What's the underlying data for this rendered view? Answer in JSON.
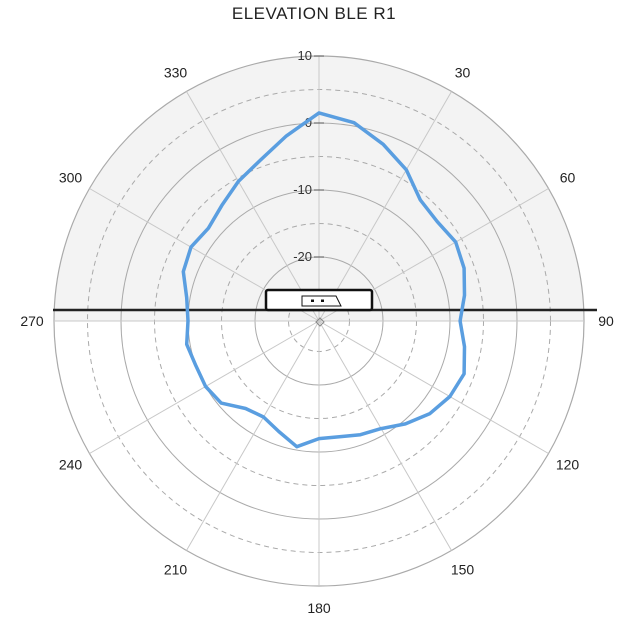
{
  "chart_data": {
    "type": "line",
    "title": "ELEVATION BLE R1",
    "projection": "polar",
    "radial_ticks": [
      "10",
      "0",
      "-10",
      "-20"
    ],
    "radial_range": [
      -40,
      10
    ],
    "angle_ticks": [
      "0",
      "30",
      "60",
      "90",
      "120",
      "150",
      "180",
      "210",
      "240",
      "270",
      "300",
      "330"
    ],
    "angle_labels_shown": [
      "30",
      "60",
      "90",
      "120",
      "150",
      "180",
      "210",
      "240",
      "270",
      "300",
      "330"
    ],
    "grid": true,
    "upper_half_shaded": true,
    "series": [
      {
        "color": "#5a9ee0",
        "angles": [
          0,
          10,
          20,
          30,
          40,
          50,
          60,
          70,
          80,
          90,
          100,
          110,
          120,
          130,
          140,
          150,
          160,
          170,
          180,
          190,
          200,
          210,
          220,
          230,
          240,
          250,
          260,
          270,
          280,
          290,
          300,
          310,
          320,
          330,
          340,
          350
        ],
        "values": [
          1.5,
          0.5,
          -1.5,
          -3.5,
          -6,
          -6.5,
          -6,
          -6.5,
          -7.5,
          -8.5,
          -7.5,
          -6.5,
          -7,
          -8,
          -9.5,
          -11,
          -11.5,
          -12,
          -12,
          -10.5,
          -12,
          -13,
          -12.5,
          -10.5,
          -10,
          -10,
          -9.5,
          -10,
          -9.5,
          -8,
          -7.5,
          -8,
          -7,
          -5.5,
          -4,
          -1.5
        ]
      }
    ]
  },
  "colors": {
    "trace": "#5a9ee0",
    "grid": "#aaaaaa",
    "shade": "#f3f3f3",
    "axis": "#222222"
  },
  "icon": "device-icon"
}
